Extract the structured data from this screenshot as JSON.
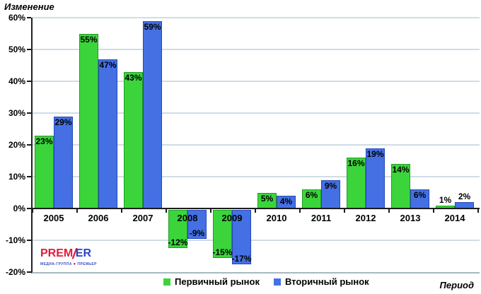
{
  "header": {
    "title": "Изменение"
  },
  "chart_data": {
    "type": "bar",
    "title": "Изменение",
    "xlabel": "Период",
    "ylabel": "Изменение",
    "categories": [
      "2005",
      "2006",
      "2007",
      "2008",
      "2009",
      "2010",
      "2011",
      "2012",
      "2013",
      "2014"
    ],
    "series": [
      {
        "name": "Первичный рынок",
        "color": "#3bd53b",
        "border_color": "#1f9e1f",
        "values": [
          23,
          55,
          43,
          -12,
          -15,
          5,
          6,
          16,
          14,
          1
        ]
      },
      {
        "name": "Вторичный рынок",
        "color": "#4470e4",
        "border_color": "#2548b8",
        "values": [
          29,
          47,
          59,
          -9,
          -17,
          4,
          9,
          19,
          6,
          2
        ]
      }
    ],
    "ylim": [
      -20,
      60
    ],
    "ytick_step": 10,
    "ytick_suffix": "%",
    "data_label_suffix": "%",
    "grid": true,
    "legend_position": "bottom"
  },
  "axis_titles": {
    "x": "Период"
  },
  "logo": {
    "brand_left": "PREM",
    "brand_slash": "/",
    "brand_right": "ER",
    "tagline_left": "МЕДИА-ГРУППА",
    "tagline_dot": "●",
    "tagline_right": "ПРЕМЬЕР"
  },
  "colors": {
    "grid": "#cfdde5",
    "axis": "#1c1c1c",
    "plot_bottom_border": "#a8b8c2",
    "logo_red": "#e51937",
    "logo_blue": "#2743c7"
  }
}
